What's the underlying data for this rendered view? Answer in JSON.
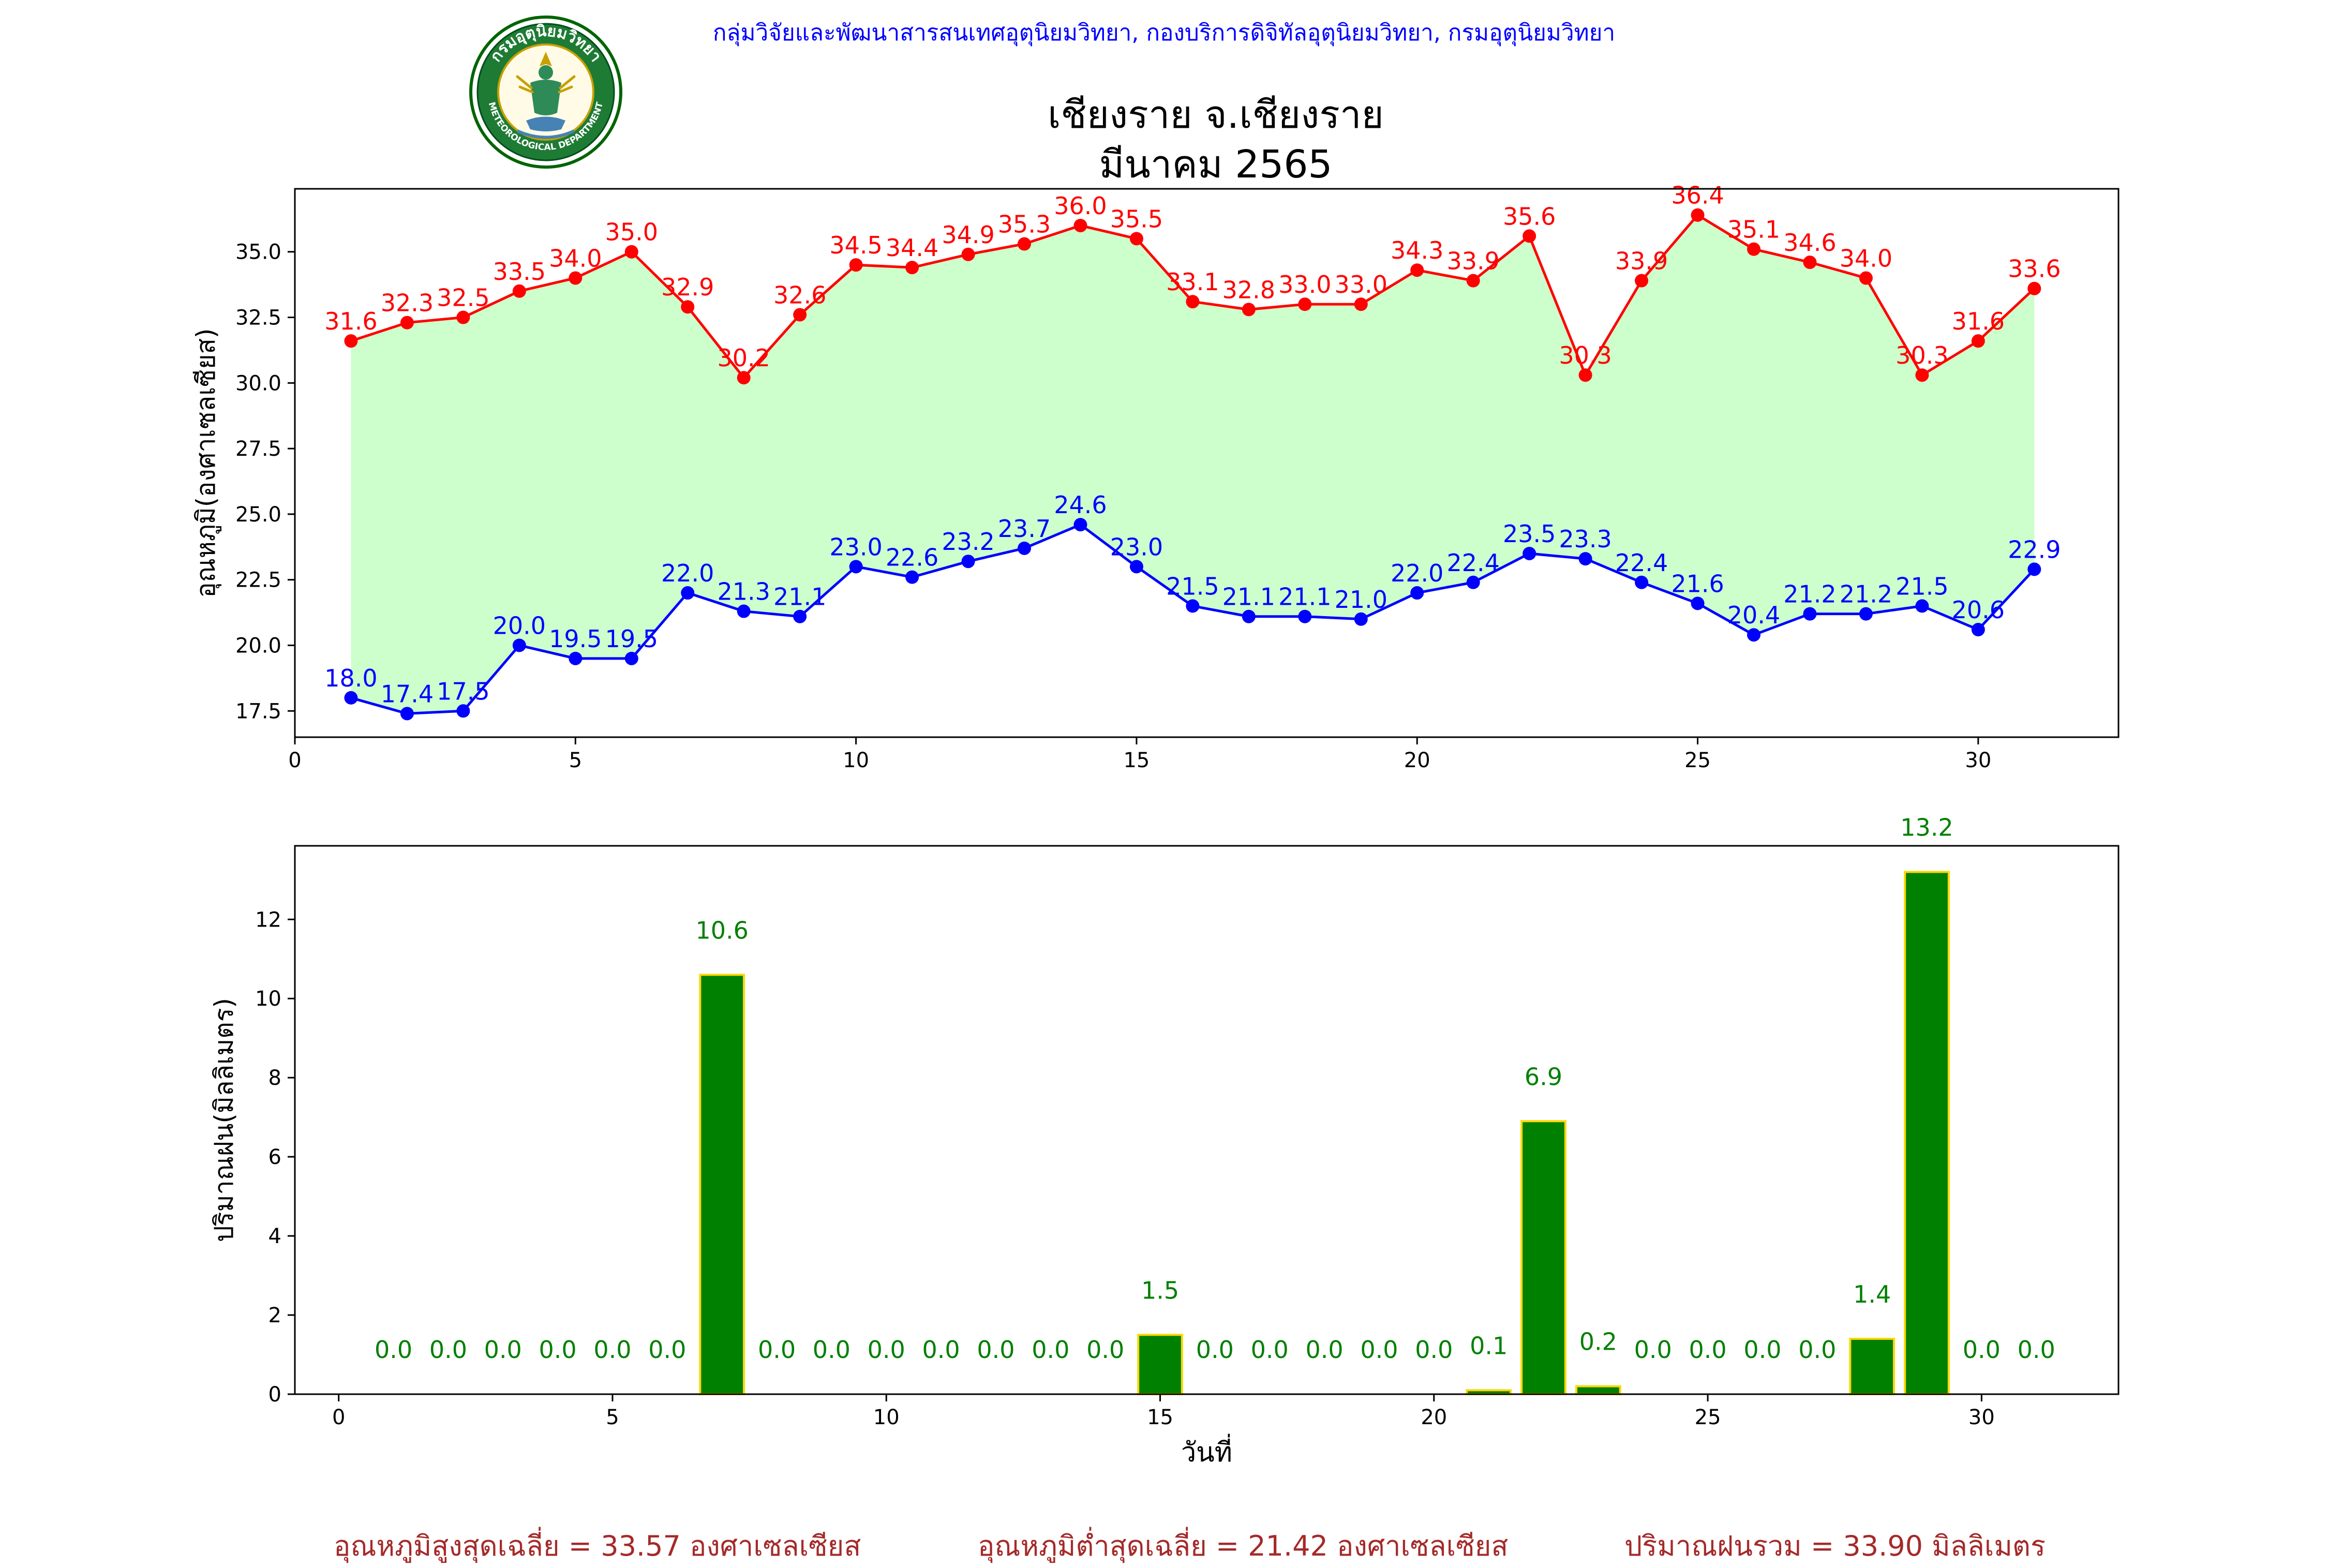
{
  "header": {
    "organization": "กลุ่มวิจัยและพัฒนาสารสนเทศอุตุนิยมวิทยา, กองบริการดิจิทัลอุตุนิยมวิทยา, กรมอุตุนิยมวิทยา",
    "seal_top_text": "กรมอุตุนิยมวิทยา",
    "seal_bottom_text": "METEOROLOGICAL DEPARTMENT"
  },
  "title_line1": "เชียงราย จ.เชียงราย",
  "title_line2": "มีนาคม 2565",
  "colors": {
    "max_temp": "#ff0000",
    "min_temp": "#0000ff",
    "temp_fill": "#ccffcc",
    "rain_bar": "#008000",
    "rain_edge": "#ffd700",
    "rain_label": "#008000",
    "footer": "#a52a2a",
    "header": "#0000ff"
  },
  "chart_data": [
    {
      "type": "line",
      "ylabel": "อุณหภูมิ(องศาเซลเซียส)",
      "xlabel": "",
      "xlim": [
        0,
        32.5
      ],
      "ylim": [
        16.5,
        37.4
      ],
      "xticks": [
        0,
        5,
        10,
        15,
        20,
        25,
        30
      ],
      "yticks": [
        17.5,
        20.0,
        22.5,
        25.0,
        27.5,
        30.0,
        32.5,
        35.0
      ],
      "x": [
        1,
        2,
        3,
        4,
        5,
        6,
        7,
        8,
        9,
        10,
        11,
        12,
        13,
        14,
        15,
        16,
        17,
        18,
        19,
        20,
        21,
        22,
        23,
        24,
        25,
        26,
        27,
        28,
        29,
        30,
        31
      ],
      "series": [
        {
          "key": "max",
          "values": [
            31.6,
            32.3,
            32.5,
            33.5,
            34.0,
            35.0,
            32.9,
            30.2,
            32.6,
            34.5,
            34.4,
            34.9,
            35.3,
            36.0,
            35.5,
            33.1,
            32.8,
            33.0,
            33.0,
            34.3,
            33.9,
            35.6,
            30.3,
            33.9,
            36.4,
            35.1,
            34.6,
            34.0,
            30.3,
            31.6,
            33.6
          ]
        },
        {
          "key": "min",
          "values": [
            18.0,
            17.4,
            17.5,
            20.0,
            19.5,
            19.5,
            22.0,
            21.3,
            21.1,
            23.0,
            22.6,
            23.2,
            23.7,
            24.6,
            23.0,
            21.5,
            21.1,
            21.1,
            21.0,
            22.0,
            22.4,
            23.5,
            23.3,
            22.4,
            21.6,
            20.4,
            21.2,
            21.2,
            21.5,
            20.6,
            22.9
          ]
        }
      ]
    },
    {
      "type": "bar",
      "ylabel": "ปริมาณฝน(มิลลิเมตร)",
      "xlabel": "วันที่",
      "xlim": [
        -0.8,
        32.5
      ],
      "ylim": [
        0,
        13.86
      ],
      "xticks": [
        0,
        5,
        10,
        15,
        20,
        25,
        30
      ],
      "yticks": [
        0,
        2,
        4,
        6,
        8,
        10,
        12
      ],
      "categories": [
        1,
        2,
        3,
        4,
        5,
        6,
        7,
        8,
        9,
        10,
        11,
        12,
        13,
        14,
        15,
        16,
        17,
        18,
        19,
        20,
        21,
        22,
        23,
        24,
        25,
        26,
        27,
        28,
        29,
        30,
        31
      ],
      "values": [
        0.0,
        0.0,
        0.0,
        0.0,
        0.0,
        0.0,
        10.6,
        0.0,
        0.0,
        0.0,
        0.0,
        0.0,
        0.0,
        0.0,
        1.5,
        0.0,
        0.0,
        0.0,
        0.0,
        0.0,
        0.1,
        6.9,
        0.2,
        0.0,
        0.0,
        0.0,
        0.0,
        1.4,
        13.2,
        0.0,
        0.0
      ]
    }
  ],
  "footer": {
    "avg_max": "อุณหภูมิสูงสุดเฉลี่ย = 33.57 องศาเซลเซียส",
    "avg_min": "อุณหภูมิต่ำสุดเฉลี่ย = 21.42 องศาเซลเซียส",
    "total_rain": "ปริมาณฝนรวม = 33.90 มิลลิเมตร"
  }
}
